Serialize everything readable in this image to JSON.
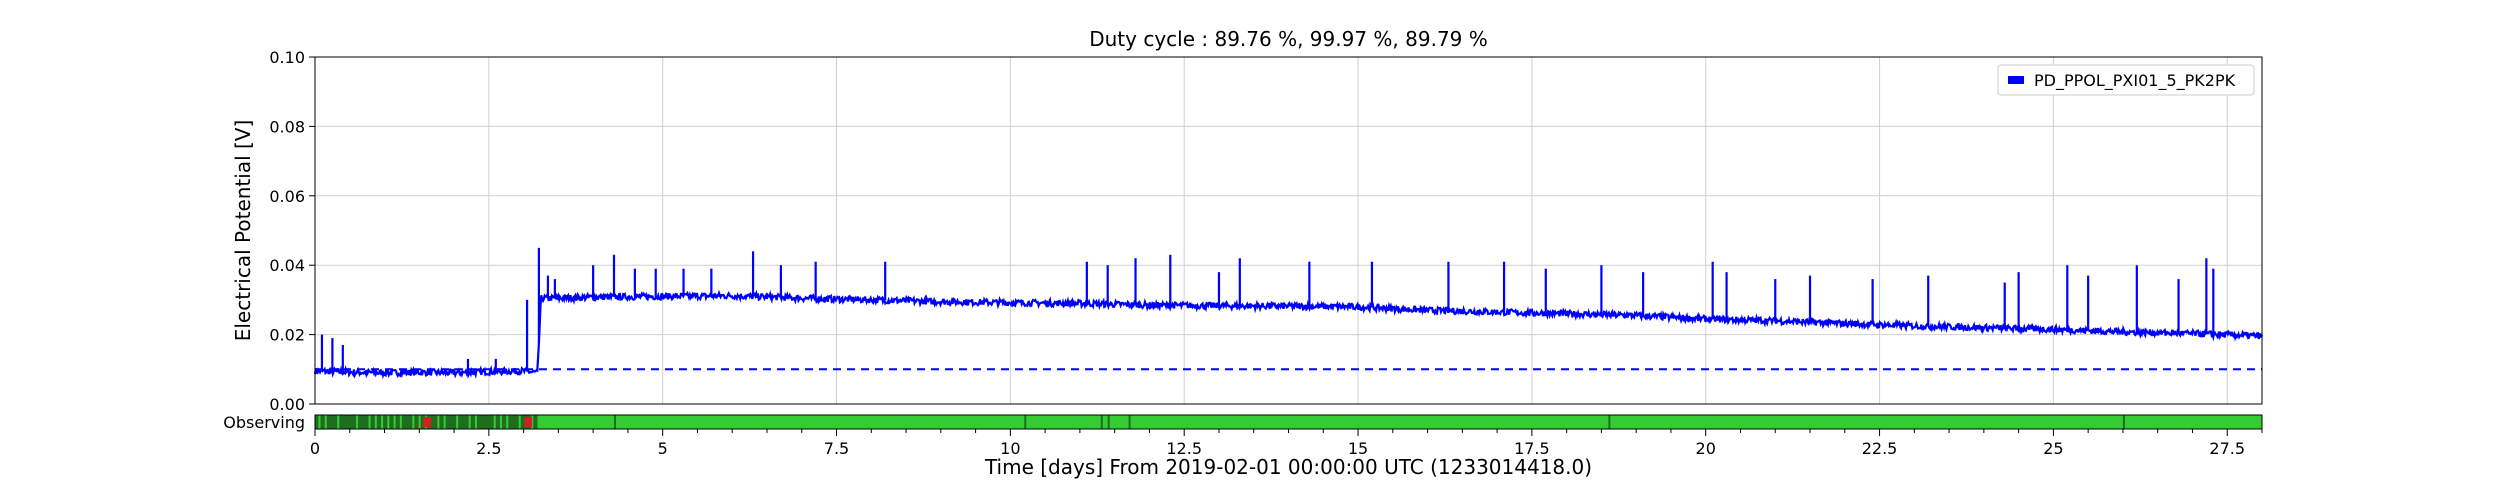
{
  "chart_data": {
    "type": "line",
    "title": "Duty cycle : 89.76 %, 99.97 %, 89.79 %",
    "xlabel": "Time [days] From 2019-02-01 00:00:00 UTC (1233014418.0)",
    "ylabel": "Electrical Potential [V]",
    "xlim": [
      0,
      28
    ],
    "ylim": [
      0,
      0.1
    ],
    "x_ticks": [
      0,
      2.5,
      5,
      7.5,
      10,
      12.5,
      15,
      17.5,
      20,
      22.5,
      25,
      27.5
    ],
    "x_tick_labels": [
      "0",
      "2.5",
      "5",
      "7.5",
      "10",
      "12.5",
      "15",
      "17.5",
      "20",
      "22.5",
      "25",
      "27.5"
    ],
    "y_ticks": [
      0,
      0.02,
      0.04,
      0.06,
      0.08,
      0.1
    ],
    "y_tick_labels": [
      "0.00",
      "0.02",
      "0.04",
      "0.06",
      "0.08",
      "0.10"
    ],
    "grid": true,
    "legend_position": "top-right",
    "series": [
      {
        "name": "PD_PPOL_PXI01_5_PK2PK",
        "color": "#0000ff",
        "x": [
          0,
          0.5,
          1.0,
          1.5,
          2.0,
          2.5,
          3.0,
          3.2,
          3.25,
          3.5,
          4.0,
          5.0,
          6.0,
          7.0,
          8.0,
          9.0,
          10.0,
          11.0,
          12.0,
          13.0,
          14.0,
          15.0,
          16.0,
          17.0,
          18.0,
          19.0,
          20.0,
          21.0,
          22.0,
          23.0,
          24.0,
          25.0,
          26.0,
          27.0,
          28.0
        ],
        "y": [
          0.0095,
          0.0092,
          0.009,
          0.0091,
          0.009,
          0.0093,
          0.0095,
          0.009,
          0.0305,
          0.0305,
          0.0308,
          0.031,
          0.0312,
          0.0305,
          0.03,
          0.0295,
          0.0292,
          0.029,
          0.0285,
          0.0283,
          0.0282,
          0.028,
          0.027,
          0.0265,
          0.026,
          0.0255,
          0.0245,
          0.024,
          0.0232,
          0.0225,
          0.022,
          0.0215,
          0.0208,
          0.0203,
          0.0196
        ],
        "spikes": [
          {
            "x": 0.1,
            "y": 0.02
          },
          {
            "x": 0.25,
            "y": 0.019
          },
          {
            "x": 0.4,
            "y": 0.017
          },
          {
            "x": 2.2,
            "y": 0.013
          },
          {
            "x": 2.6,
            "y": 0.013
          },
          {
            "x": 3.05,
            "y": 0.03
          },
          {
            "x": 3.22,
            "y": 0.045
          },
          {
            "x": 3.35,
            "y": 0.037
          },
          {
            "x": 3.45,
            "y": 0.036
          },
          {
            "x": 4.0,
            "y": 0.04
          },
          {
            "x": 4.3,
            "y": 0.043
          },
          {
            "x": 4.6,
            "y": 0.039
          },
          {
            "x": 4.9,
            "y": 0.039
          },
          {
            "x": 5.3,
            "y": 0.039
          },
          {
            "x": 5.7,
            "y": 0.039
          },
          {
            "x": 6.3,
            "y": 0.044
          },
          {
            "x": 6.7,
            "y": 0.04
          },
          {
            "x": 7.2,
            "y": 0.041
          },
          {
            "x": 8.2,
            "y": 0.041
          },
          {
            "x": 11.1,
            "y": 0.041
          },
          {
            "x": 11.4,
            "y": 0.04
          },
          {
            "x": 11.8,
            "y": 0.042
          },
          {
            "x": 12.3,
            "y": 0.043
          },
          {
            "x": 13.0,
            "y": 0.038
          },
          {
            "x": 13.3,
            "y": 0.042
          },
          {
            "x": 14.3,
            "y": 0.041
          },
          {
            "x": 15.2,
            "y": 0.041
          },
          {
            "x": 16.3,
            "y": 0.041
          },
          {
            "x": 17.1,
            "y": 0.041
          },
          {
            "x": 17.7,
            "y": 0.039
          },
          {
            "x": 18.5,
            "y": 0.04
          },
          {
            "x": 19.1,
            "y": 0.038
          },
          {
            "x": 20.1,
            "y": 0.041
          },
          {
            "x": 20.3,
            "y": 0.038
          },
          {
            "x": 21.0,
            "y": 0.036
          },
          {
            "x": 21.5,
            "y": 0.037
          },
          {
            "x": 22.4,
            "y": 0.036
          },
          {
            "x": 23.2,
            "y": 0.037
          },
          {
            "x": 24.3,
            "y": 0.035
          },
          {
            "x": 24.5,
            "y": 0.038
          },
          {
            "x": 25.2,
            "y": 0.04
          },
          {
            "x": 25.5,
            "y": 0.037
          },
          {
            "x": 26.2,
            "y": 0.04
          },
          {
            "x": 26.8,
            "y": 0.036
          },
          {
            "x": 27.2,
            "y": 0.042
          },
          {
            "x": 27.3,
            "y": 0.039
          }
        ]
      }
    ],
    "threshold": {
      "y": 0.01,
      "style": "dashed",
      "color": "#0000ff"
    },
    "state_bar": {
      "label": "Observing",
      "color": "#33cc33",
      "dark_color": "#1f6e1f",
      "flag_color": "#cc2222",
      "dark_segments": [
        [
          0,
          3.2
        ]
      ],
      "flag_positions": [
        1.6,
        3.05
      ],
      "dark_ticks": [
        4.3,
        10.2,
        11.3,
        11.4,
        11.7,
        18.6,
        26.0
      ]
    }
  }
}
